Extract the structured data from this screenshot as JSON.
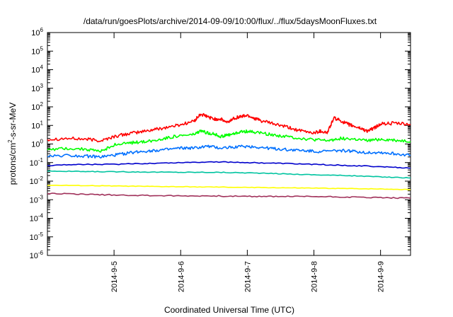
{
  "chart_data": {
    "type": "line",
    "title": "/data/run/goesPlots/archive/2014-09-09/10:00/flux/../flux/5daysMoonFluxes.txt",
    "xlabel": "Coordinated Universal Time (UTC)",
    "ylabel_parts": {
      "pre": "protons/cm",
      "sup": "2",
      "post": "-s-sr-MeV"
    },
    "yscale": "log",
    "ylim_exponents": [
      -6,
      6
    ],
    "y_tick_labels": [
      {
        "base": "10",
        "exp": "-6"
      },
      {
        "base": "10",
        "exp": "-5"
      },
      {
        "base": "10",
        "exp": "-4"
      },
      {
        "base": "10",
        "exp": "-3"
      },
      {
        "base": "10",
        "exp": "-2"
      },
      {
        "base": "10",
        "exp": "-1"
      },
      {
        "base": "10",
        "exp": "0"
      },
      {
        "base": "10",
        "exp": "1"
      },
      {
        "base": "10",
        "exp": "2"
      },
      {
        "base": "10",
        "exp": "3"
      },
      {
        "base": "10",
        "exp": "4"
      },
      {
        "base": "10",
        "exp": "5"
      },
      {
        "base": "10",
        "exp": "6"
      }
    ],
    "xlim_days": [
      4.0,
      9.45
    ],
    "x_ticks": [
      {
        "day": 5,
        "label": "2014-9-5"
      },
      {
        "day": 6,
        "label": "2014-9-6"
      },
      {
        "day": 7,
        "label": "2014-9-7"
      },
      {
        "day": 8,
        "label": "2014-9-8"
      },
      {
        "day": 9,
        "label": "2014-9-9"
      }
    ],
    "grid": false,
    "series": [
      {
        "color": "#ff0000",
        "x": [
          4.0,
          4.3,
          4.6,
          4.8,
          5.0,
          5.2,
          5.4,
          5.6,
          5.8,
          6.0,
          6.2,
          6.3,
          6.4,
          6.5,
          6.6,
          6.7,
          6.8,
          6.9,
          7.0,
          7.1,
          7.2,
          7.4,
          7.6,
          7.8,
          8.0,
          8.1,
          8.2,
          8.3,
          8.4,
          8.5,
          8.6,
          8.7,
          8.8,
          8.9,
          9.0,
          9.2,
          9.45
        ],
        "y": [
          1.8,
          2.0,
          1.8,
          1.5,
          2.5,
          3.5,
          4.5,
          6.0,
          8.0,
          11,
          17,
          40,
          30,
          22,
          22,
          14,
          25,
          30,
          35,
          25,
          18,
          12,
          8,
          5,
          4,
          5,
          4,
          25,
          18,
          12,
          9,
          7,
          5,
          7,
          12,
          13,
          11
        ]
      },
      {
        "color": "#00ff00",
        "x": [
          4.0,
          4.3,
          4.6,
          4.8,
          5.0,
          5.2,
          5.4,
          5.6,
          5.8,
          6.0,
          6.2,
          6.3,
          6.4,
          6.5,
          6.6,
          6.7,
          6.8,
          6.9,
          7.0,
          7.2,
          7.4,
          7.6,
          7.8,
          8.0,
          8.2,
          8.4,
          8.6,
          8.8,
          9.0,
          9.2,
          9.45
        ],
        "y": [
          0.5,
          0.6,
          0.5,
          0.4,
          0.9,
          1.1,
          1.3,
          1.5,
          2.2,
          2.8,
          3.2,
          5.0,
          4.0,
          3.5,
          2.5,
          3.0,
          3.5,
          4.5,
          4.8,
          4.0,
          3.0,
          2.5,
          2.0,
          1.7,
          1.5,
          2.0,
          1.8,
          1.5,
          1.8,
          1.6,
          1.4
        ]
      },
      {
        "color": "#0070ff",
        "x": [
          4.0,
          4.3,
          4.6,
          4.8,
          5.0,
          5.2,
          5.4,
          5.6,
          5.8,
          6.0,
          6.2,
          6.4,
          6.6,
          6.8,
          7.0,
          7.2,
          7.4,
          7.6,
          7.8,
          8.0,
          8.2,
          8.4,
          8.6,
          8.8,
          9.0,
          9.2,
          9.45
        ],
        "y": [
          0.22,
          0.25,
          0.22,
          0.2,
          0.25,
          0.32,
          0.4,
          0.45,
          0.5,
          0.6,
          0.6,
          0.75,
          0.6,
          0.7,
          0.75,
          0.65,
          0.55,
          0.5,
          0.45,
          0.4,
          0.4,
          0.45,
          0.4,
          0.35,
          0.35,
          0.3,
          0.25
        ]
      },
      {
        "color": "#0000cc",
        "x": [
          4.0,
          4.5,
          5.0,
          5.5,
          6.0,
          6.5,
          7.0,
          7.5,
          8.0,
          8.5,
          9.0,
          9.45
        ],
        "y": [
          0.07,
          0.08,
          0.08,
          0.09,
          0.1,
          0.11,
          0.1,
          0.09,
          0.08,
          0.07,
          0.06,
          0.05
        ]
      },
      {
        "color": "#00c4a0",
        "x": [
          4.0,
          4.5,
          5.0,
          5.5,
          6.0,
          6.5,
          7.0,
          7.5,
          8.0,
          8.5,
          9.0,
          9.45
        ],
        "y": [
          0.035,
          0.033,
          0.032,
          0.031,
          0.03,
          0.03,
          0.028,
          0.025,
          0.022,
          0.02,
          0.017,
          0.015
        ]
      },
      {
        "color": "#ffff00",
        "x": [
          4.0,
          4.5,
          5.0,
          5.5,
          6.0,
          6.5,
          7.0,
          7.5,
          8.0,
          8.5,
          9.0,
          9.45
        ],
        "y": [
          0.006,
          0.0058,
          0.0055,
          0.0052,
          0.005,
          0.0048,
          0.0046,
          0.0044,
          0.0042,
          0.004,
          0.0038,
          0.0035
        ]
      },
      {
        "color": "#a0305a",
        "x": [
          4.0,
          4.5,
          5.0,
          5.5,
          6.0,
          6.5,
          7.0,
          7.5,
          8.0,
          8.5,
          9.0,
          9.45
        ],
        "y": [
          0.0022,
          0.002,
          0.0018,
          0.0017,
          0.0016,
          0.0016,
          0.0015,
          0.0015,
          0.0015,
          0.0014,
          0.0013,
          0.0012
        ]
      }
    ]
  }
}
